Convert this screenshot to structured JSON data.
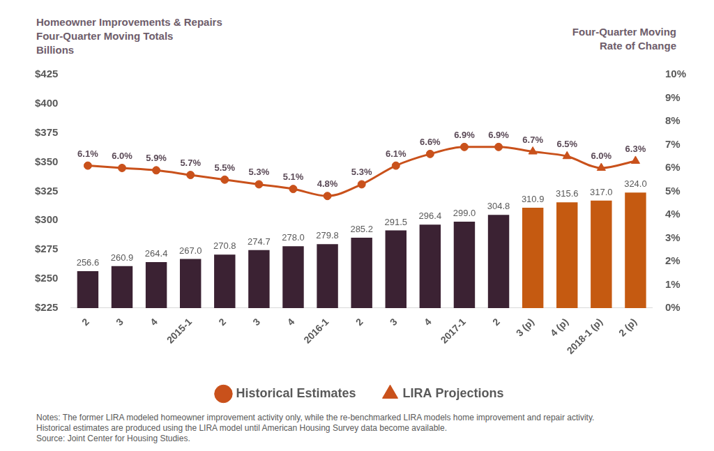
{
  "chart_data": {
    "type": "bar",
    "title": "Homeowner Improvements & Repairs",
    "subtitle": "Four-Quarter Moving Totals",
    "ylabel": "Billions",
    "y2label": [
      "Four-Quarter Moving",
      "Rate of Change"
    ],
    "notes": [
      "Notes: The former LIRA modeled homeowner improvement activity only, while the re-benchmarked LIRA models home improvement and repair activity.",
      "Historical estimates are produced using the LIRA model until American Housing Survey data become available.",
      "Source: Joint Center for Housing Studies."
    ],
    "categories": [
      "2",
      "3",
      "4",
      "2015-1",
      "2",
      "3",
      "4",
      "2016-1",
      "2",
      "3",
      "4",
      "2017-1",
      "2",
      "3 (p)",
      "4 (p)",
      "2018-1 (p)",
      "2 (p)"
    ],
    "series": [
      {
        "type": "bar",
        "colors": [
          "#3b2233",
          "#3b2233",
          "#3b2233",
          "#3b2233",
          "#3b2233",
          "#3b2233",
          "#3b2233",
          "#3b2233",
          "#3b2233",
          "#3b2233",
          "#3b2233",
          "#3b2233",
          "#3b2233",
          "#c55a11",
          "#c55a11",
          "#c55a11",
          "#c55a11"
        ],
        "values": [
          256.6,
          260.9,
          264.4,
          267.0,
          270.8,
          274.7,
          278.0,
          279.8,
          285.2,
          291.5,
          296.4,
          299.0,
          304.8,
          310.9,
          315.6,
          317.0,
          324.0
        ],
        "value_labels": [
          "256.6",
          "260.9",
          "264.4",
          "267.0",
          "270.8",
          "274.7",
          "278.0",
          "279.8",
          "285.2",
          "291.5",
          "296.4",
          "299.0",
          "304.8",
          "310.9",
          "315.6",
          "317.0",
          "324.0"
        ]
      },
      {
        "name": "Historical Estimates",
        "type": "line",
        "axis": "y2",
        "color": "#c9511b",
        "marker": "circle",
        "values": [
          6.1,
          6.0,
          5.9,
          5.7,
          5.5,
          5.3,
          5.1,
          4.8,
          5.3,
          6.1,
          6.6,
          6.9,
          6.9,
          null,
          null,
          null,
          null
        ],
        "value_labels": [
          "6.1%",
          "6.0%",
          "5.9%",
          "5.7%",
          "5.5%",
          "5.3%",
          "5.1%",
          "4.8%",
          "5.3%",
          "6.1%",
          "6.6%",
          "6.9%",
          "6.9%",
          null,
          null,
          null,
          null
        ]
      },
      {
        "name": "LIRA Projections",
        "type": "line",
        "axis": "y2",
        "color": "#c9511b",
        "marker": "triangle",
        "values": [
          null,
          null,
          null,
          null,
          null,
          null,
          null,
          null,
          null,
          null,
          null,
          null,
          null,
          6.7,
          6.5,
          6.0,
          6.3
        ],
        "value_labels": [
          null,
          null,
          null,
          null,
          null,
          null,
          null,
          null,
          null,
          null,
          null,
          null,
          null,
          "6.7%",
          "6.5%",
          "6.0%",
          "6.3%"
        ]
      }
    ],
    "ylim": [
      225,
      425
    ],
    "yticks": [
      {
        "value": 225,
        "label": "$225"
      },
      {
        "value": 250,
        "label": "$250"
      },
      {
        "value": 275,
        "label": "$275"
      },
      {
        "value": 300,
        "label": "$300"
      },
      {
        "value": 325,
        "label": "$325"
      },
      {
        "value": 350,
        "label": "$350"
      },
      {
        "value": 375,
        "label": "$375"
      },
      {
        "value": 400,
        "label": "$400"
      },
      {
        "value": 425,
        "label": "$425"
      }
    ],
    "y2lim": [
      0,
      10
    ],
    "y2ticks": [
      {
        "value": 0,
        "label": "0%"
      },
      {
        "value": 1,
        "label": "1%"
      },
      {
        "value": 2,
        "label": "2%"
      },
      {
        "value": 3,
        "label": "3%"
      },
      {
        "value": 4,
        "label": "4%"
      },
      {
        "value": 5,
        "label": "5%"
      },
      {
        "value": 6,
        "label": "6%"
      },
      {
        "value": 7,
        "label": "7%"
      },
      {
        "value": 8,
        "label": "8%"
      },
      {
        "value": 9,
        "label": "9%"
      },
      {
        "value": 10,
        "label": "10%"
      }
    ],
    "grid": false,
    "legend": "bottom",
    "data_labels": true
  }
}
